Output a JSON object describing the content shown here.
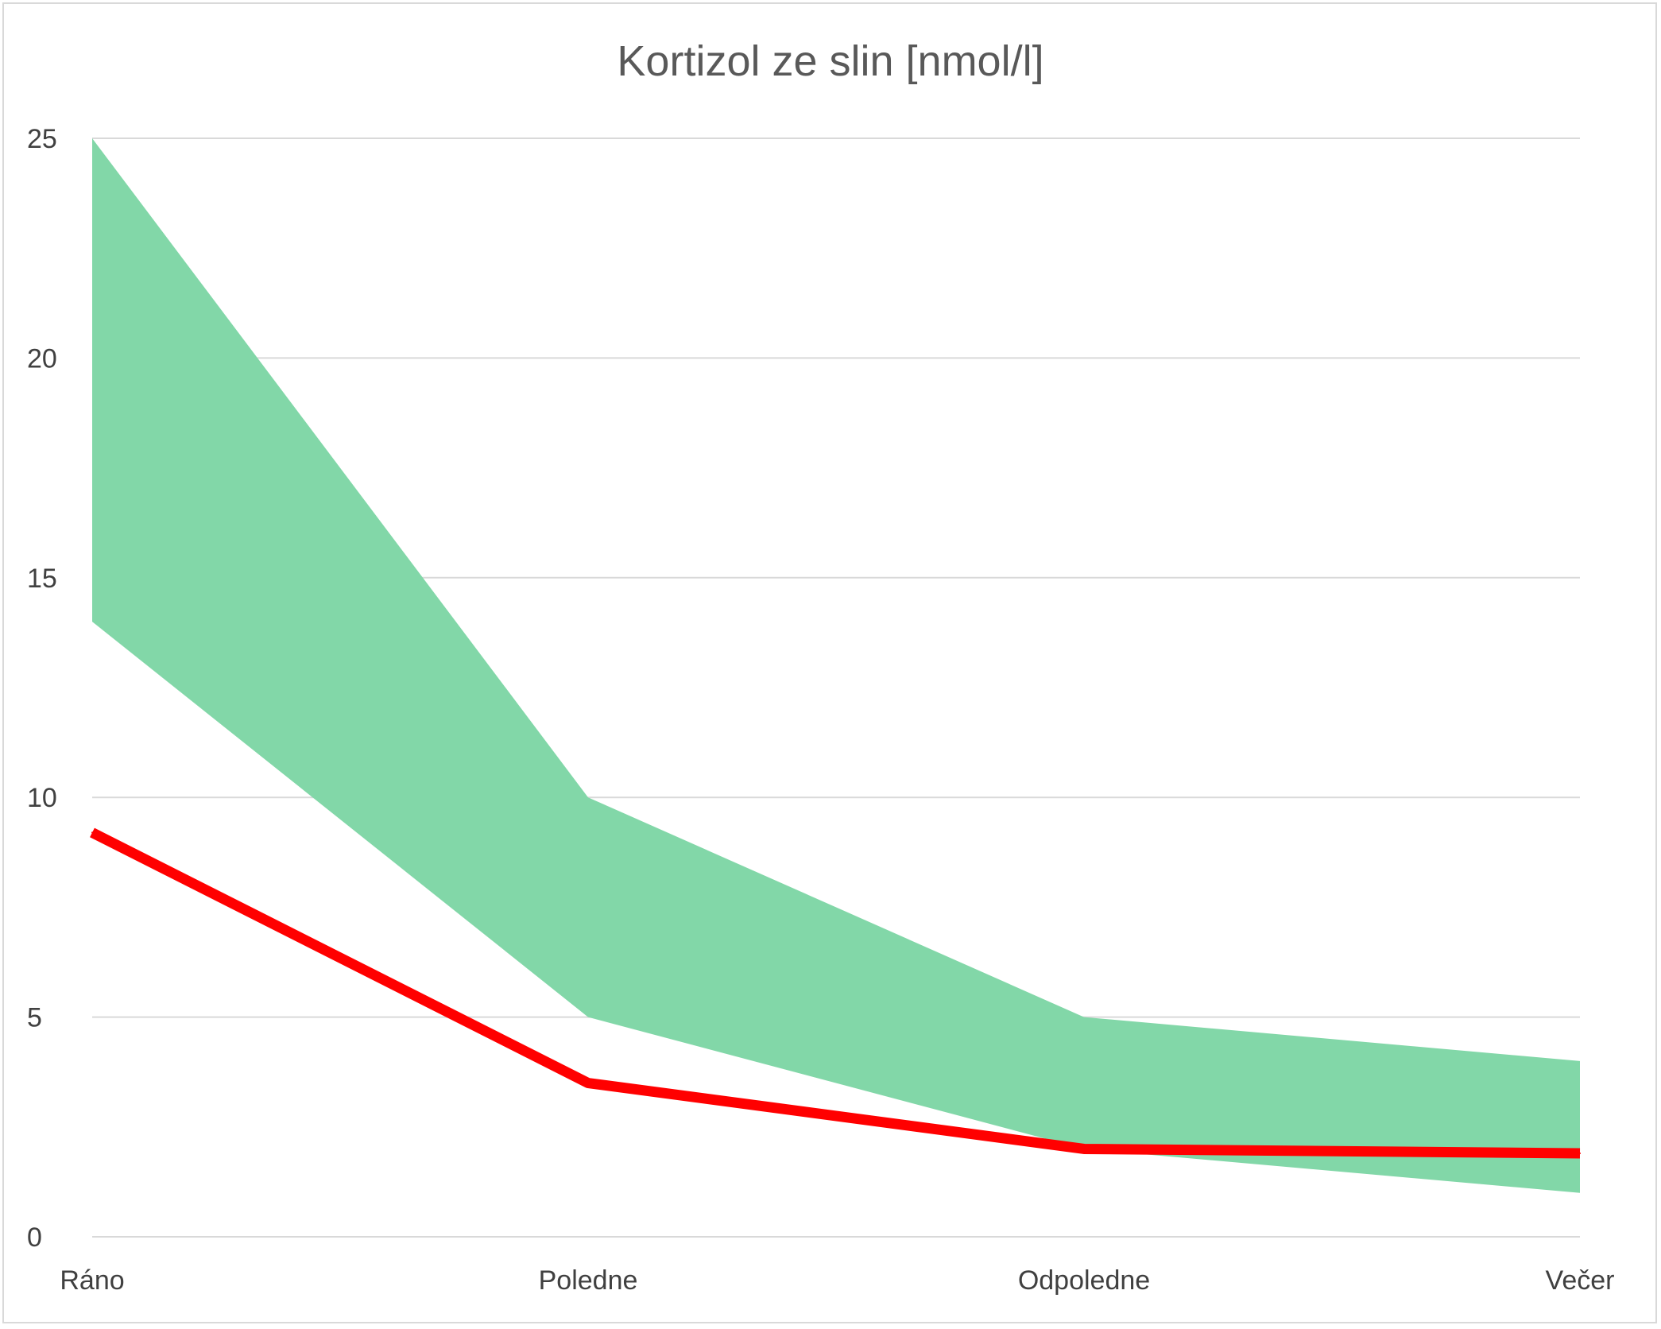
{
  "chart_data": {
    "type": "area",
    "title": "Kortizol ze slin [nmol/l]",
    "xlabel": "",
    "ylabel": "",
    "categories": [
      "Ráno",
      "Poledne",
      "Odpoledne",
      "Večer"
    ],
    "ylim": [
      0,
      25
    ],
    "yticks": [
      0,
      5,
      10,
      15,
      20,
      25
    ],
    "grid": true,
    "legend": "none",
    "series": [
      {
        "role": "band-lower",
        "values": [
          14,
          5,
          2,
          1
        ],
        "color": "#82d7a8"
      },
      {
        "role": "band-upper",
        "values": [
          25,
          10,
          5,
          4
        ],
        "color": "#82d7a8"
      },
      {
        "role": "line",
        "values": [
          9.2,
          3.5,
          2.0,
          1.9
        ],
        "color": "#ff0000"
      }
    ]
  }
}
